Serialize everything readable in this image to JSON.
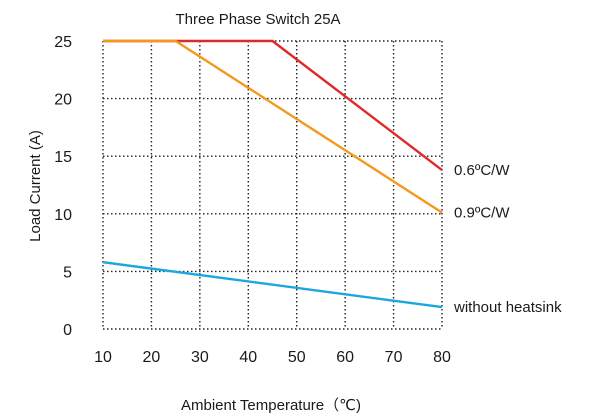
{
  "chart_data": {
    "type": "line",
    "title": "Three Phase Switch   25A",
    "xlabel": "Ambient Temperature（℃)",
    "ylabel": "Load Current (A)",
    "xlim": [
      10,
      80
    ],
    "ylim": [
      0,
      25
    ],
    "x_ticks": [
      10,
      20,
      30,
      40,
      50,
      60,
      70,
      80
    ],
    "y_ticks": [
      0,
      5,
      10,
      15,
      20,
      25
    ],
    "grid": true,
    "grid_style": "dotted",
    "legend": "inline-right",
    "series": [
      {
        "name": "0.6ºC/W",
        "color": "#e02a2a",
        "x": [
          10,
          45,
          80
        ],
        "y": [
          25,
          25,
          13.8
        ]
      },
      {
        "name": "0.9ºC/W",
        "color": "#f39a1c",
        "x": [
          10,
          25,
          80
        ],
        "y": [
          25,
          25,
          10.1
        ]
      },
      {
        "name": "without heatsink",
        "color": "#1aa7e0",
        "x": [
          10,
          80
        ],
        "y": [
          5.8,
          1.9
        ]
      }
    ]
  }
}
